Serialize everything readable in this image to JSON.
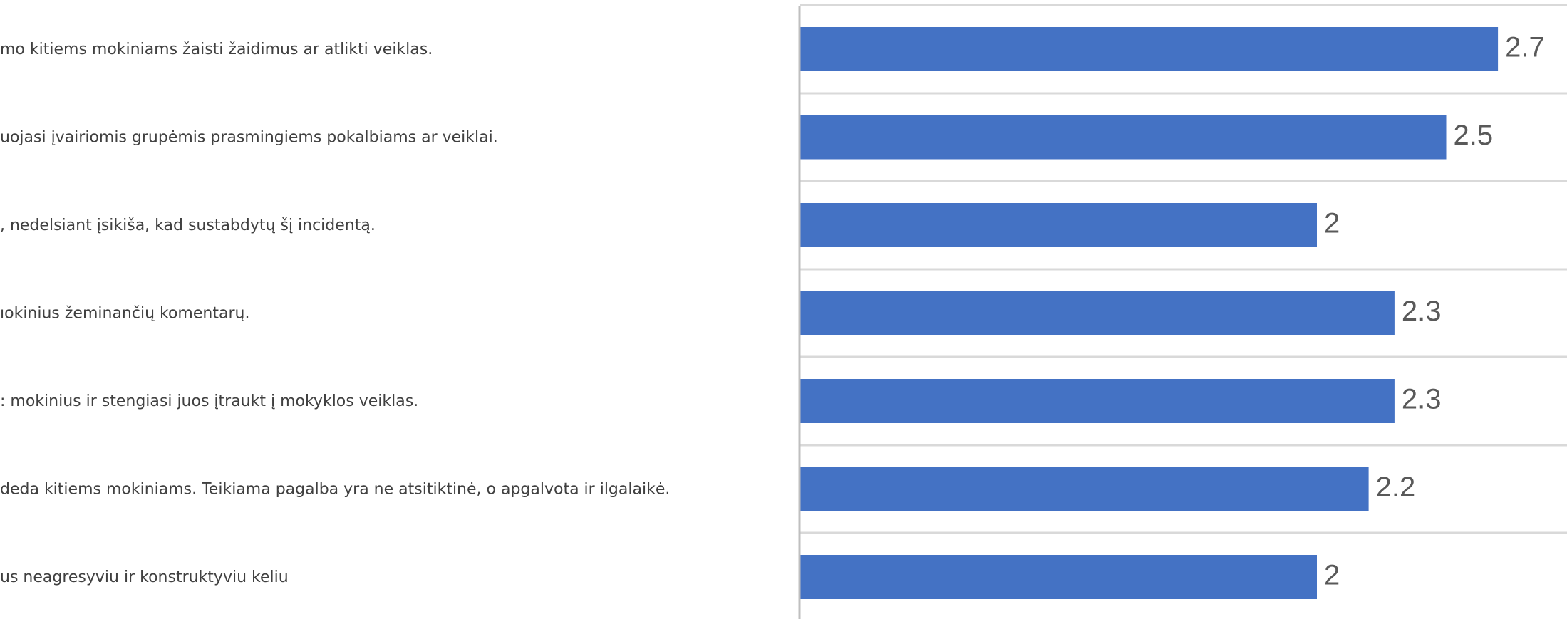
{
  "chart_data": {
    "type": "bar",
    "orientation": "horizontal",
    "categories": [
      "mo kitiems mokiniams žaisti žaidimus ar atlikti veiklas.",
      "uojasi įvairiomis grupėmis prasmingiems pokalbiams ar veiklai.",
      ", nedelsiant įsikiša, kad sustabdytų šį incidentą.",
      "ıokinius žeminančių komentarų.",
      ": mokinius ir stengiasi juos įtraukt į mokyklos veiklas.",
      "deda kitiems mokiniams. Teikiama pagalba yra ne atsitiktinė, o apgalvota ir ilgalaikė.",
      "us neagresyviu ir konstruktyviu keliu"
    ],
    "values": [
      2.7,
      2.5,
      2,
      2.3,
      2.3,
      2.2,
      2
    ],
    "value_labels": [
      "2.7",
      "2.5",
      "2",
      "2.3",
      "2.3",
      "2.2",
      "2"
    ],
    "xlim": [
      0,
      3.4
    ],
    "grid": true,
    "bar_color": "#4472C4",
    "grid_color": "#d9d9d9",
    "axis_color": "#bfbfbf"
  }
}
